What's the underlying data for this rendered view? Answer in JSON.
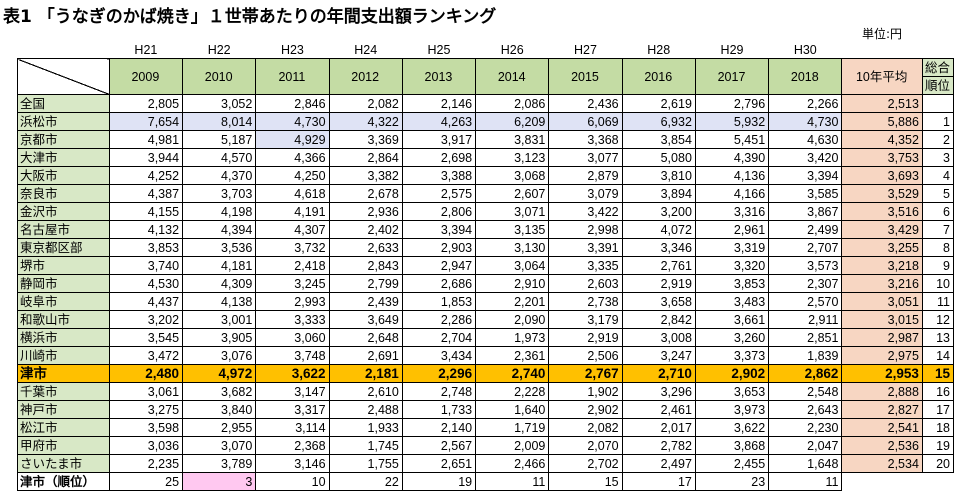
{
  "title": "表1 「うなぎのかば焼き」１世帯あたりの年間支出額ランキング",
  "unit": "単位:円",
  "header": {
    "heisei": [
      "H21",
      "H22",
      "H23",
      "H24",
      "H25",
      "H26",
      "H27",
      "H28",
      "H29",
      "H30"
    ],
    "years": [
      "2009",
      "2010",
      "2011",
      "2012",
      "2013",
      "2014",
      "2015",
      "2016",
      "2017",
      "2018"
    ],
    "avg_label": "10年平均",
    "rank_label_1": "総合",
    "rank_label_2": "順位"
  },
  "rows": [
    {
      "name": "全国",
      "values": [
        "2,805",
        "3,052",
        "2,846",
        "2,082",
        "2,146",
        "2,086",
        "2,436",
        "2,619",
        "2,796",
        "2,266"
      ],
      "avg": "2,513",
      "rank": ""
    },
    {
      "name": "浜松市",
      "values": [
        "7,654",
        "8,014",
        "4,730",
        "4,322",
        "4,263",
        "6,209",
        "6,069",
        "6,932",
        "5,932",
        "4,730"
      ],
      "avg": "5,886",
      "rank": "1"
    },
    {
      "name": "京都市",
      "values": [
        "4,981",
        "5,187",
        "4,929",
        "3,369",
        "3,917",
        "3,831",
        "3,368",
        "3,854",
        "5,451",
        "4,630"
      ],
      "avg": "4,352",
      "rank": "2"
    },
    {
      "name": "大津市",
      "values": [
        "3,944",
        "4,570",
        "4,366",
        "2,864",
        "2,698",
        "3,123",
        "3,077",
        "5,080",
        "4,390",
        "3,420"
      ],
      "avg": "3,753",
      "rank": "3"
    },
    {
      "name": "大阪市",
      "values": [
        "4,252",
        "4,370",
        "4,250",
        "3,382",
        "3,388",
        "3,068",
        "2,879",
        "3,810",
        "4,136",
        "3,394"
      ],
      "avg": "3,693",
      "rank": "4"
    },
    {
      "name": "奈良市",
      "values": [
        "4,387",
        "3,703",
        "4,618",
        "2,678",
        "2,575",
        "2,607",
        "3,079",
        "3,894",
        "4,166",
        "3,585"
      ],
      "avg": "3,529",
      "rank": "5"
    },
    {
      "name": "金沢市",
      "values": [
        "4,155",
        "4,198",
        "4,191",
        "2,936",
        "2,806",
        "3,071",
        "3,422",
        "3,200",
        "3,316",
        "3,867"
      ],
      "avg": "3,516",
      "rank": "6"
    },
    {
      "name": "名古屋市",
      "values": [
        "4,132",
        "4,394",
        "4,307",
        "2,402",
        "3,394",
        "3,135",
        "2,998",
        "4,072",
        "2,961",
        "2,499"
      ],
      "avg": "3,429",
      "rank": "7"
    },
    {
      "name": "東京都区部",
      "values": [
        "3,853",
        "3,536",
        "3,732",
        "2,633",
        "2,903",
        "3,130",
        "3,391",
        "3,346",
        "3,319",
        "2,707"
      ],
      "avg": "3,255",
      "rank": "8"
    },
    {
      "name": "堺市",
      "values": [
        "3,740",
        "4,181",
        "2,418",
        "2,843",
        "2,947",
        "3,064",
        "3,335",
        "2,761",
        "3,320",
        "3,573"
      ],
      "avg": "3,218",
      "rank": "9"
    },
    {
      "name": "静岡市",
      "values": [
        "4,530",
        "4,309",
        "3,245",
        "2,799",
        "2,686",
        "2,910",
        "2,603",
        "2,919",
        "3,853",
        "2,307"
      ],
      "avg": "3,216",
      "rank": "10"
    },
    {
      "name": "岐阜市",
      "values": [
        "4,437",
        "4,138",
        "2,993",
        "2,439",
        "1,853",
        "2,201",
        "2,738",
        "3,658",
        "3,483",
        "2,570"
      ],
      "avg": "3,051",
      "rank": "11"
    },
    {
      "name": "和歌山市",
      "values": [
        "3,202",
        "3,001",
        "3,333",
        "3,649",
        "2,286",
        "2,090",
        "3,179",
        "2,842",
        "3,661",
        "2,911"
      ],
      "avg": "3,015",
      "rank": "12"
    },
    {
      "name": "横浜市",
      "values": [
        "3,545",
        "3,905",
        "3,060",
        "2,648",
        "2,704",
        "1,973",
        "2,919",
        "3,008",
        "3,260",
        "2,851"
      ],
      "avg": "2,987",
      "rank": "13"
    },
    {
      "name": "川崎市",
      "values": [
        "3,472",
        "3,076",
        "3,748",
        "2,691",
        "3,434",
        "2,361",
        "2,506",
        "3,247",
        "3,373",
        "1,839"
      ],
      "avg": "2,975",
      "rank": "14"
    },
    {
      "name": "津市",
      "values": [
        "2,480",
        "4,972",
        "3,622",
        "2,181",
        "2,296",
        "2,740",
        "2,767",
        "2,710",
        "2,902",
        "2,862"
      ],
      "avg": "2,953",
      "rank": "15"
    },
    {
      "name": "千葉市",
      "values": [
        "3,061",
        "3,682",
        "3,147",
        "2,610",
        "2,748",
        "2,228",
        "1,902",
        "3,296",
        "3,653",
        "2,548"
      ],
      "avg": "2,888",
      "rank": "16"
    },
    {
      "name": "神戸市",
      "values": [
        "3,275",
        "3,840",
        "3,317",
        "2,488",
        "1,733",
        "1,640",
        "2,902",
        "2,461",
        "3,973",
        "2,643"
      ],
      "avg": "2,827",
      "rank": "17"
    },
    {
      "name": "松江市",
      "values": [
        "3,598",
        "2,955",
        "3,114",
        "1,933",
        "2,140",
        "1,719",
        "2,082",
        "2,017",
        "3,622",
        "2,230"
      ],
      "avg": "2,541",
      "rank": "18"
    },
    {
      "name": "甲府市",
      "values": [
        "3,036",
        "3,070",
        "2,368",
        "1,745",
        "2,567",
        "2,009",
        "2,070",
        "2,782",
        "3,868",
        "2,047"
      ],
      "avg": "2,536",
      "rank": "19"
    },
    {
      "name": "さいたま市",
      "values": [
        "2,235",
        "3,789",
        "3,146",
        "1,755",
        "2,651",
        "2,466",
        "2,702",
        "2,497",
        "2,455",
        "1,648"
      ],
      "avg": "2,534",
      "rank": "20"
    }
  ],
  "rank_row": {
    "name": "津市（順位）",
    "values": [
      "25",
      "3",
      "10",
      "22",
      "19",
      "11",
      "15",
      "17",
      "23",
      "11"
    ]
  },
  "colors": {
    "header_green": "#c4dca4",
    "name_green": "#d8e8c6",
    "avg_salmon": "#f7d6c2",
    "highlight_blue": "#dfe3f5",
    "tsu_orange": "#ffc000",
    "rank_pink": "#ffc8f0"
  }
}
